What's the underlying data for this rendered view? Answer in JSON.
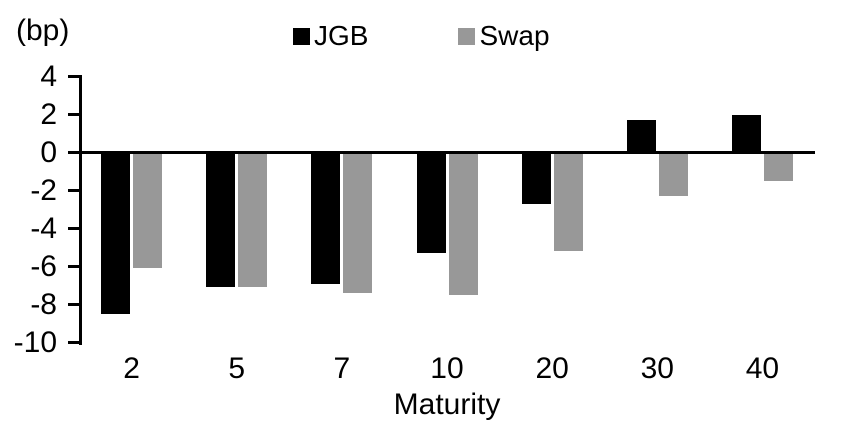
{
  "chart_data": {
    "type": "bar",
    "title": "",
    "unit_label": "(bp)",
    "xlabel": "Maturity",
    "ylabel": "",
    "categories": [
      "2",
      "5",
      "7",
      "10",
      "20",
      "30",
      "40"
    ],
    "series": [
      {
        "name": "JGB",
        "color": "#000000",
        "values": [
          -8.5,
          -7.1,
          -6.9,
          -5.3,
          -2.7,
          1.7,
          2.0
        ]
      },
      {
        "name": "Swap",
        "color": "#989898",
        "values": [
          -6.1,
          -7.1,
          -7.4,
          -7.5,
          -5.2,
          -2.3,
          -1.5
        ]
      }
    ],
    "ylim": [
      -10,
      4
    ],
    "yticks": [
      4,
      2,
      0,
      -2,
      -4,
      -6,
      -8,
      -10
    ],
    "legend_position": "top",
    "grid": false,
    "baseline": 0
  }
}
